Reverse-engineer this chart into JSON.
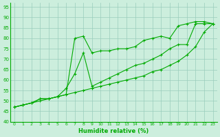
{
  "xlabel": "Humidite relative (%)",
  "bg_color": "#cceedd",
  "grid_color": "#99ccbb",
  "line_color": "#00aa00",
  "xlim": [
    -0.5,
    23.5
  ],
  "ylim": [
    40,
    97
  ],
  "yticks": [
    40,
    45,
    50,
    55,
    60,
    65,
    70,
    75,
    80,
    85,
    90,
    95
  ],
  "xticks": [
    0,
    1,
    2,
    3,
    4,
    5,
    6,
    7,
    8,
    9,
    10,
    11,
    12,
    13,
    14,
    15,
    16,
    17,
    18,
    19,
    20,
    21,
    22,
    23
  ],
  "series": [
    {
      "x": [
        0,
        1,
        2,
        3,
        4,
        5,
        6,
        7,
        8,
        9,
        10,
        11,
        12,
        13,
        14,
        15,
        16,
        17,
        18,
        19,
        20,
        21,
        22,
        23
      ],
      "y": [
        47,
        48,
        49,
        51,
        51,
        52,
        53,
        80,
        81,
        73,
        74,
        74,
        75,
        75,
        76,
        79,
        80,
        81,
        80,
        86,
        87,
        88,
        88,
        87
      ]
    },
    {
      "x": [
        0,
        1,
        2,
        3,
        4,
        5,
        6,
        7,
        8,
        9,
        10,
        11,
        12,
        13,
        14,
        15,
        16,
        17,
        18,
        19,
        20,
        21,
        22,
        23
      ],
      "y": [
        47,
        48,
        49,
        51,
        51,
        52,
        56,
        63,
        73,
        57,
        59,
        61,
        63,
        65,
        67,
        68,
        70,
        72,
        75,
        77,
        77,
        87,
        87,
        87
      ]
    },
    {
      "x": [
        0,
        1,
        2,
        3,
        4,
        5,
        6,
        7,
        8,
        9,
        10,
        11,
        12,
        13,
        14,
        15,
        16,
        17,
        18,
        19,
        20,
        21,
        22,
        23
      ],
      "y": [
        47,
        48,
        49,
        50,
        51,
        52,
        53,
        54,
        55,
        56,
        57,
        58,
        59,
        60,
        61,
        62,
        64,
        65,
        67,
        69,
        72,
        76,
        83,
        87
      ]
    }
  ]
}
